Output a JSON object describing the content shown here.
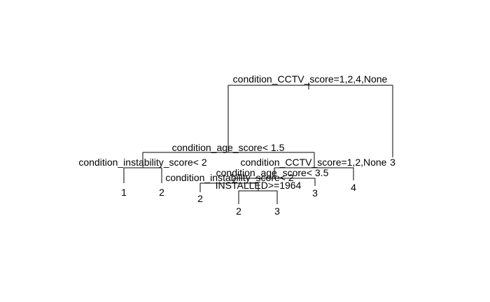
{
  "tree": {
    "splits": {
      "root": "condition_CCTV_score=1,2,4,None",
      "age1": "condition_age_score< 1.5",
      "instab1": "condition_instability_score< 2",
      "cctv2": "condition_CCTV_score=1,2,None",
      "age2": "condition_age_score< 3.5",
      "instab2": "condition_instability_score< 2",
      "installed": "INSTALLED>=1964"
    },
    "leaves": {
      "leaf_1": "1",
      "leaf_2a": "2",
      "leaf_2b": "2",
      "leaf_2c": "2",
      "leaf_3a": "3",
      "leaf_3b": "3",
      "leaf_4": "4",
      "leaf_3c": "3"
    }
  }
}
